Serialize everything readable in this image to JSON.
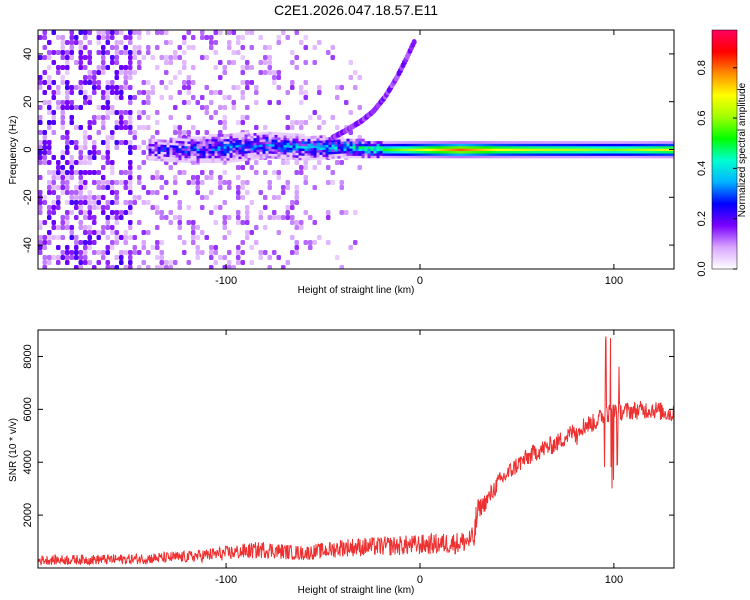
{
  "title": "C2E1.2026.047.18.57.E11",
  "colors": {
    "snr_line": "#ee3030",
    "spectrogram_sparse": "#9a5ce6",
    "spectrogram_dense": "#5a00d6",
    "colorbar_stops": [
      "#ffffff",
      "#d9a6ff",
      "#7a00ff",
      "#0000ff",
      "#00b4ff",
      "#00ffd0",
      "#00ff00",
      "#a0ff00",
      "#ffff00",
      "#ff8c00",
      "#ff0000",
      "#ff0060"
    ]
  },
  "chart_data": [
    {
      "type": "heatmap",
      "name": "spectrogram",
      "xlabel": "Height of straight line (km)",
      "ylabel": "Frequency (Hz)",
      "xlim": [
        -197,
        131
      ],
      "ylim": [
        -50,
        50
      ],
      "xticks": [
        -100,
        0,
        100
      ],
      "xtick_labels": [
        "-100",
        "0",
        "100"
      ],
      "yticks": [
        -40,
        -20,
        0,
        20,
        40
      ],
      "ytick_labels": [
        "-40",
        "-20",
        "0",
        "20",
        "40"
      ],
      "colorbar": {
        "label": "Normalized spectral amplitude",
        "range": [
          0,
          0.95
        ],
        "ticks": [
          0.0,
          0.2,
          0.4,
          0.6,
          0.8
        ],
        "tick_labels": [
          "0.0",
          "0.2",
          "0.4",
          "0.6",
          "0.8"
        ]
      },
      "features": {
        "noise_region_x": [
          -197,
          -30
        ],
        "central_band": {
          "x": [
            -140,
            -120,
            -100,
            -80,
            -60,
            -40,
            -20,
            0,
            20,
            40,
            60,
            80,
            100,
            131
          ],
          "freq": [
            0,
            0,
            1,
            2,
            1,
            1,
            0,
            0,
            0,
            0,
            0,
            0,
            0,
            0
          ],
          "halfwidth": [
            4,
            5,
            6,
            5,
            5,
            4,
            3,
            3,
            3,
            3,
            3,
            3,
            3,
            3
          ],
          "amplitude": [
            0.2,
            0.25,
            0.28,
            0.3,
            0.33,
            0.38,
            0.55,
            0.7,
            0.85,
            0.72,
            0.68,
            0.66,
            0.62,
            0.72
          ]
        },
        "rising_arc": {
          "x": [
            -45,
            -38,
            -30,
            -24,
            -18,
            -12,
            -7,
            -3
          ],
          "freq": [
            5,
            8,
            12,
            16,
            22,
            30,
            38,
            45
          ]
        }
      }
    },
    {
      "type": "line",
      "name": "snr",
      "xlabel": "Height of straight line (km)",
      "ylabel": "SNR (10 * v/v)",
      "xlim": [
        -197,
        131
      ],
      "ylim": [
        0,
        9000
      ],
      "xticks": [
        -100,
        0,
        100
      ],
      "xtick_labels": [
        "-100",
        "0",
        "100"
      ],
      "yticks": [
        2000,
        4000,
        6000,
        8000
      ],
      "ytick_labels": [
        "2000",
        "4000",
        "6000",
        "8000"
      ],
      "series": [
        {
          "name": "SNR",
          "x": [
            -197,
            -150,
            -120,
            -100,
            -80,
            -70,
            -60,
            -45,
            -40,
            -20,
            0,
            20,
            28,
            29,
            30,
            35,
            40,
            50,
            60,
            70,
            80,
            85,
            90,
            95,
            100,
            110,
            120,
            131
          ],
          "y": [
            300,
            330,
            420,
            560,
            700,
            620,
            560,
            700,
            780,
            820,
            880,
            950,
            1100,
            1800,
            2200,
            2600,
            3200,
            3900,
            4400,
            4700,
            5200,
            5400,
            5500,
            5800,
            5900,
            5950,
            6000,
            5800
          ]
        }
      ],
      "features": {
        "spike_region_x": [
          95,
          103
        ],
        "spike_max": 9000,
        "spike_min": 3000
      }
    }
  ]
}
